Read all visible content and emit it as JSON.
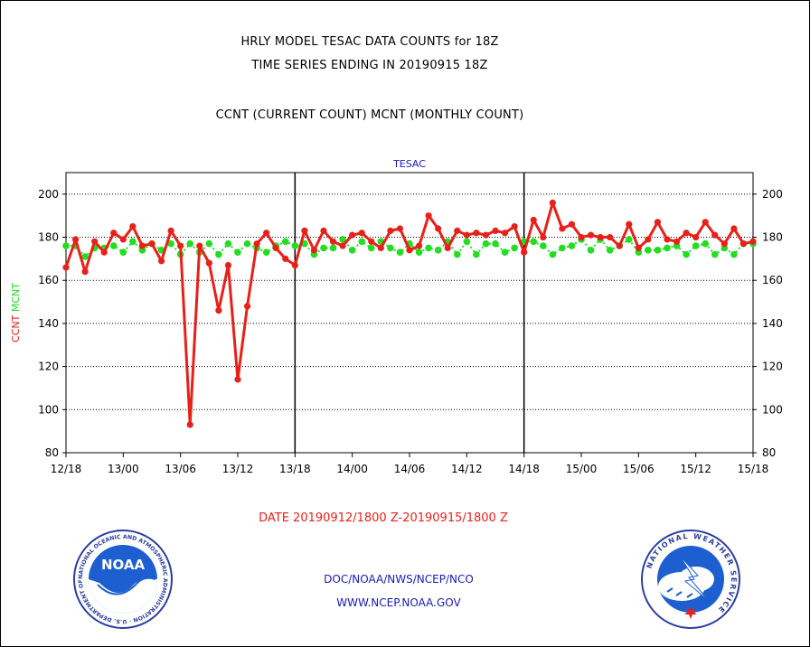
{
  "titles": {
    "line1": "HRLY MODEL TESAC DATA COUNTS for 18Z",
    "line2": "TIME SERIES ENDING IN 20190915 18Z",
    "line3": "CCNT (CURRENT COUNT) MCNT (MONTHLY COUNT)"
  },
  "footer": {
    "date_range": "DATE 20190912/1800 Z-20190915/1800 Z",
    "org": "DOC/NOAA/NWS/NCEP/NCO",
    "url": "WWW.NCEP.NOAA.GOV"
  },
  "logos": {
    "left": {
      "text": "NOAA",
      "ring_text": "NATIONAL OCEANIC AND ATMOSPHERIC ADMINISTRATION · U.S. DEPARTMENT OF COMMERCE"
    },
    "right": {
      "ring_text": "NATIONAL WEATHER SERVICE"
    }
  },
  "colors": {
    "ccnt": "#e8201a",
    "mcnt": "#22dd22",
    "title_blue": "#1a1ab8"
  },
  "chart_data": {
    "type": "line",
    "title": "TESAC",
    "ylabel_parts": [
      "CCNT",
      "MCNT"
    ],
    "ylim": [
      80,
      210
    ],
    "yticks": [
      80,
      100,
      120,
      140,
      160,
      180,
      200
    ],
    "xlim": [
      0,
      72
    ],
    "x_unit": "hours since 12/18",
    "xticks": [
      {
        "x": 0,
        "label": "12/18"
      },
      {
        "x": 6,
        "label": "13/00"
      },
      {
        "x": 12,
        "label": "13/06"
      },
      {
        "x": 18,
        "label": "13/12"
      },
      {
        "x": 24,
        "label": "13/18"
      },
      {
        "x": 30,
        "label": "14/00"
      },
      {
        "x": 36,
        "label": "14/06"
      },
      {
        "x": 42,
        "label": "14/12"
      },
      {
        "x": 48,
        "label": "14/18"
      },
      {
        "x": 54,
        "label": "15/00"
      },
      {
        "x": 60,
        "label": "15/06"
      },
      {
        "x": 66,
        "label": "15/12"
      },
      {
        "x": 72,
        "label": "15/18"
      }
    ],
    "day_boundaries": [
      24,
      48
    ],
    "grid": "horizontal dotted",
    "series": [
      {
        "name": "CCNT",
        "color": "#e8201a",
        "values": [
          166,
          179,
          164,
          178,
          173,
          182,
          179,
          185,
          176,
          177,
          169,
          183,
          176,
          93,
          176,
          168,
          146,
          167,
          114,
          148,
          177,
          182,
          175,
          170,
          167,
          183,
          174,
          183,
          178,
          176,
          181,
          182,
          178,
          175,
          183,
          184,
          174,
          176,
          190,
          184,
          175,
          183,
          181,
          182,
          181,
          183,
          182,
          185,
          173,
          188,
          180,
          196,
          184,
          186,
          180,
          181,
          180,
          180,
          176,
          186,
          175,
          179,
          187,
          179,
          178,
          182,
          180,
          187,
          181,
          177,
          184,
          177,
          178
        ]
      },
      {
        "name": "MCNT",
        "color": "#22dd22",
        "values": [
          176,
          176,
          171,
          175,
          175,
          176,
          173,
          178,
          174,
          177,
          174,
          177,
          172,
          177,
          173,
          177,
          172,
          177,
          173,
          177,
          175,
          173,
          176,
          178,
          176,
          177,
          172,
          175,
          175,
          179,
          174,
          178,
          175,
          178,
          175,
          173,
          177,
          173,
          175,
          174,
          178,
          172,
          178,
          172,
          177,
          177,
          173,
          175,
          178,
          178,
          176,
          172,
          175,
          176,
          179,
          174,
          179,
          174,
          176,
          179,
          173,
          174,
          174,
          175,
          176,
          172,
          176,
          177,
          172,
          175,
          172,
          177,
          177
        ]
      }
    ]
  }
}
